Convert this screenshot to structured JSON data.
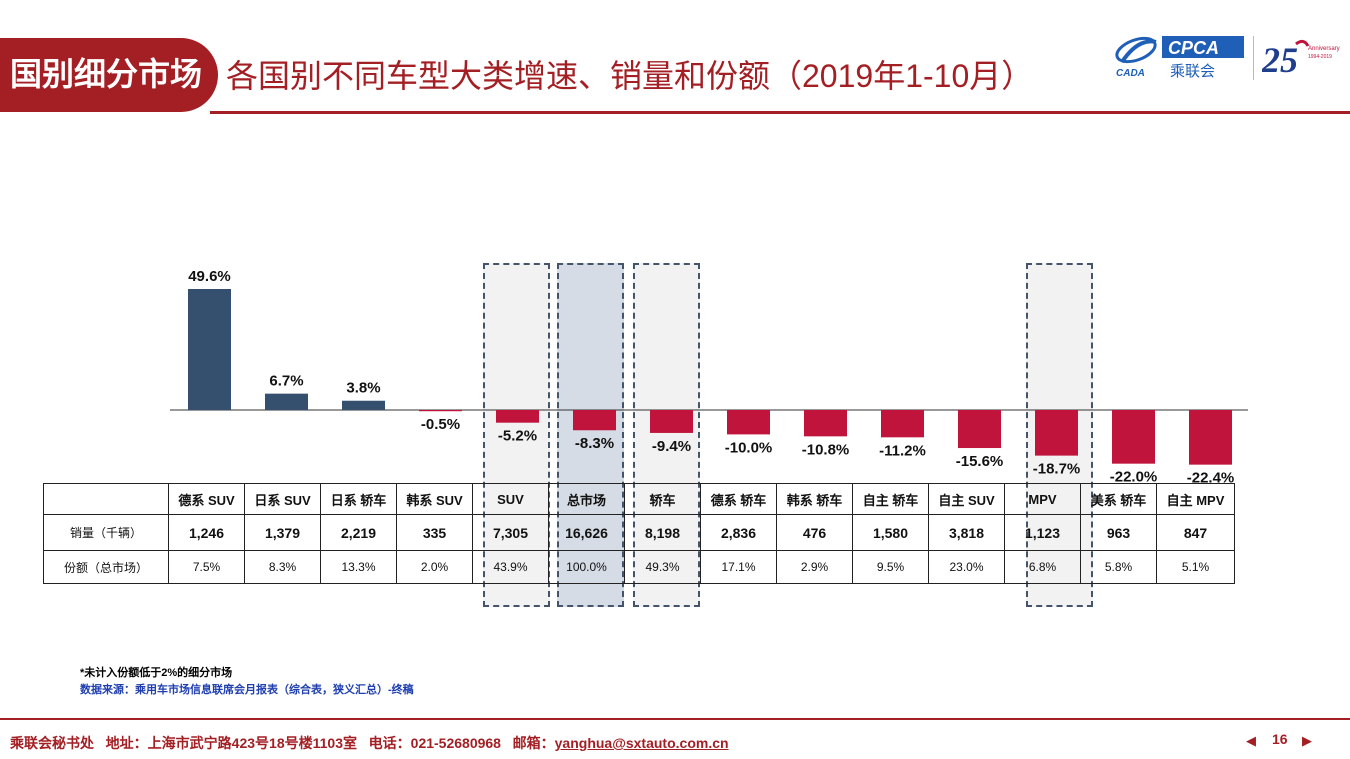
{
  "header": {
    "section_label": "国别细分市场",
    "title": "各国别不同车型大类增速、销量和份额（2019年1-10月）",
    "logo_text": "CPCA",
    "logo_cn": "乘联会",
    "logo_small": "CADA",
    "anniversary_number": "25",
    "anniversary_label": "Anniversary",
    "anniversary_years": "1994-2019"
  },
  "colors": {
    "accent": "#a31f24",
    "positive": "#354f6e",
    "negative": "#c0143c",
    "highlight": "#d6dce5"
  },
  "chart_data": {
    "type": "bar",
    "categories": [
      "德系 SUV",
      "日系 SUV",
      "日系 轿车",
      "韩系 SUV",
      "SUV",
      "总市场",
      "轿车",
      "德系 轿车",
      "韩系 轿车",
      "自主 轿车",
      "自主 SUV",
      "MPV",
      "美系 轿车",
      "自主 MPV"
    ],
    "values": [
      49.6,
      6.7,
      3.8,
      -0.5,
      -5.2,
      -8.3,
      -9.4,
      -10.0,
      -10.8,
      -11.2,
      -15.6,
      -18.7,
      -22.0,
      -22.4
    ],
    "value_labels": [
      "49.6%",
      "6.7%",
      "3.8%",
      "-0.5%",
      "-5.2%",
      "-8.3%",
      "-9.4%",
      "-10.0%",
      "-10.8%",
      "-11.2%",
      "-15.6%",
      "-18.7%",
      "-22.0%",
      "-22.4%"
    ],
    "unit": "%",
    "highlighted_categories": [
      "SUV",
      "总市场",
      "轿车",
      "MPV"
    ],
    "ylim": [
      -25,
      52
    ]
  },
  "table": {
    "header_blank": "",
    "row_sales_label": "销量（千辆）",
    "row_share_label": "份额（总市场）",
    "sales": [
      "1,246",
      "1,379",
      "2,219",
      "335",
      "7,305",
      "16,626",
      "8,198",
      "2,836",
      "476",
      "1,580",
      "3,818",
      "1,123",
      "963",
      "847"
    ],
    "share": [
      "7.5%",
      "8.3%",
      "13.3%",
      "2.0%",
      "43.9%",
      "100.0%",
      "49.3%",
      "17.1%",
      "2.9%",
      "9.5%",
      "23.0%",
      "6.8%",
      "5.8%",
      "5.1%"
    ]
  },
  "notes": {
    "footnote": "*未计入份额低于2%的细分市场",
    "source": "数据来源：乘用车市场信息联席会月报表（综合表，狭义汇总）-终稿"
  },
  "footer": {
    "org": "乘联会秘书处",
    "address": "地址：上海市武宁路423号18号楼1103室",
    "phone": "电话：021-52680968",
    "email_label": "邮箱：",
    "email": "yanghua@sxtauto.com.cn",
    "page": "16",
    "prev_icon": "triangle-left-icon",
    "next_icon": "triangle-right-icon"
  }
}
